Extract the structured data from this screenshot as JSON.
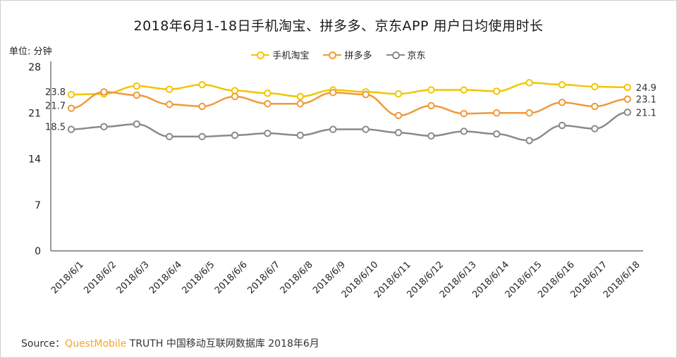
{
  "chart_data": {
    "type": "line",
    "title": "2018年6月1-18日手机淘宝、拼多多、京东APP 用户日均使用时长",
    "unit_label": "单位: 分钟",
    "ylim": [
      0,
      28
    ],
    "yticks": [
      0,
      7,
      14,
      21,
      28
    ],
    "grid": false,
    "legend_position": "top-center",
    "categories": [
      "2018/6/1",
      "2018/6/2",
      "2018/6/3",
      "2018/6/4",
      "2018/6/5",
      "2018/6/6",
      "2018/6/7",
      "2018/6/8",
      "2018/6/9",
      "2018/6/10",
      "2018/6/11",
      "2018/6/12",
      "2018/6/13",
      "2018/6/14",
      "2018/6/15",
      "2018/6/16",
      "2018/6/17",
      "2018/6/18"
    ],
    "series": [
      {
        "name": "手机淘宝",
        "color": "#f2c500",
        "values": [
          23.8,
          23.9,
          25.1,
          24.6,
          25.3,
          24.4,
          24.0,
          23.5,
          24.5,
          24.2,
          23.9,
          24.5,
          24.5,
          24.3,
          25.6,
          25.3,
          25.0,
          24.9
        ],
        "labels": {
          "0": "23.8",
          "17": "24.9"
        }
      },
      {
        "name": "拼多多",
        "color": "#ee9a3a",
        "values": [
          21.7,
          24.2,
          23.7,
          22.3,
          22.0,
          23.5,
          22.4,
          22.4,
          24.1,
          23.8,
          20.6,
          22.1,
          20.9,
          21.0,
          21.0,
          22.6,
          22.0,
          23.1
        ],
        "labels": {
          "0": "21.7",
          "17": "23.1"
        }
      },
      {
        "name": "京东",
        "color": "#8a8a8a",
        "values": [
          18.5,
          18.9,
          19.3,
          17.4,
          17.4,
          17.6,
          17.9,
          17.6,
          18.5,
          18.5,
          18.0,
          17.5,
          18.2,
          17.8,
          16.8,
          19.1,
          18.6,
          21.1
        ],
        "labels": {
          "0": "18.5",
          "17": "21.1"
        }
      }
    ]
  },
  "source": {
    "prefix": "Source：",
    "brand": "QuestMobile",
    "rest": " TRUTH 中国移动互联网数据库 2018年6月"
  }
}
